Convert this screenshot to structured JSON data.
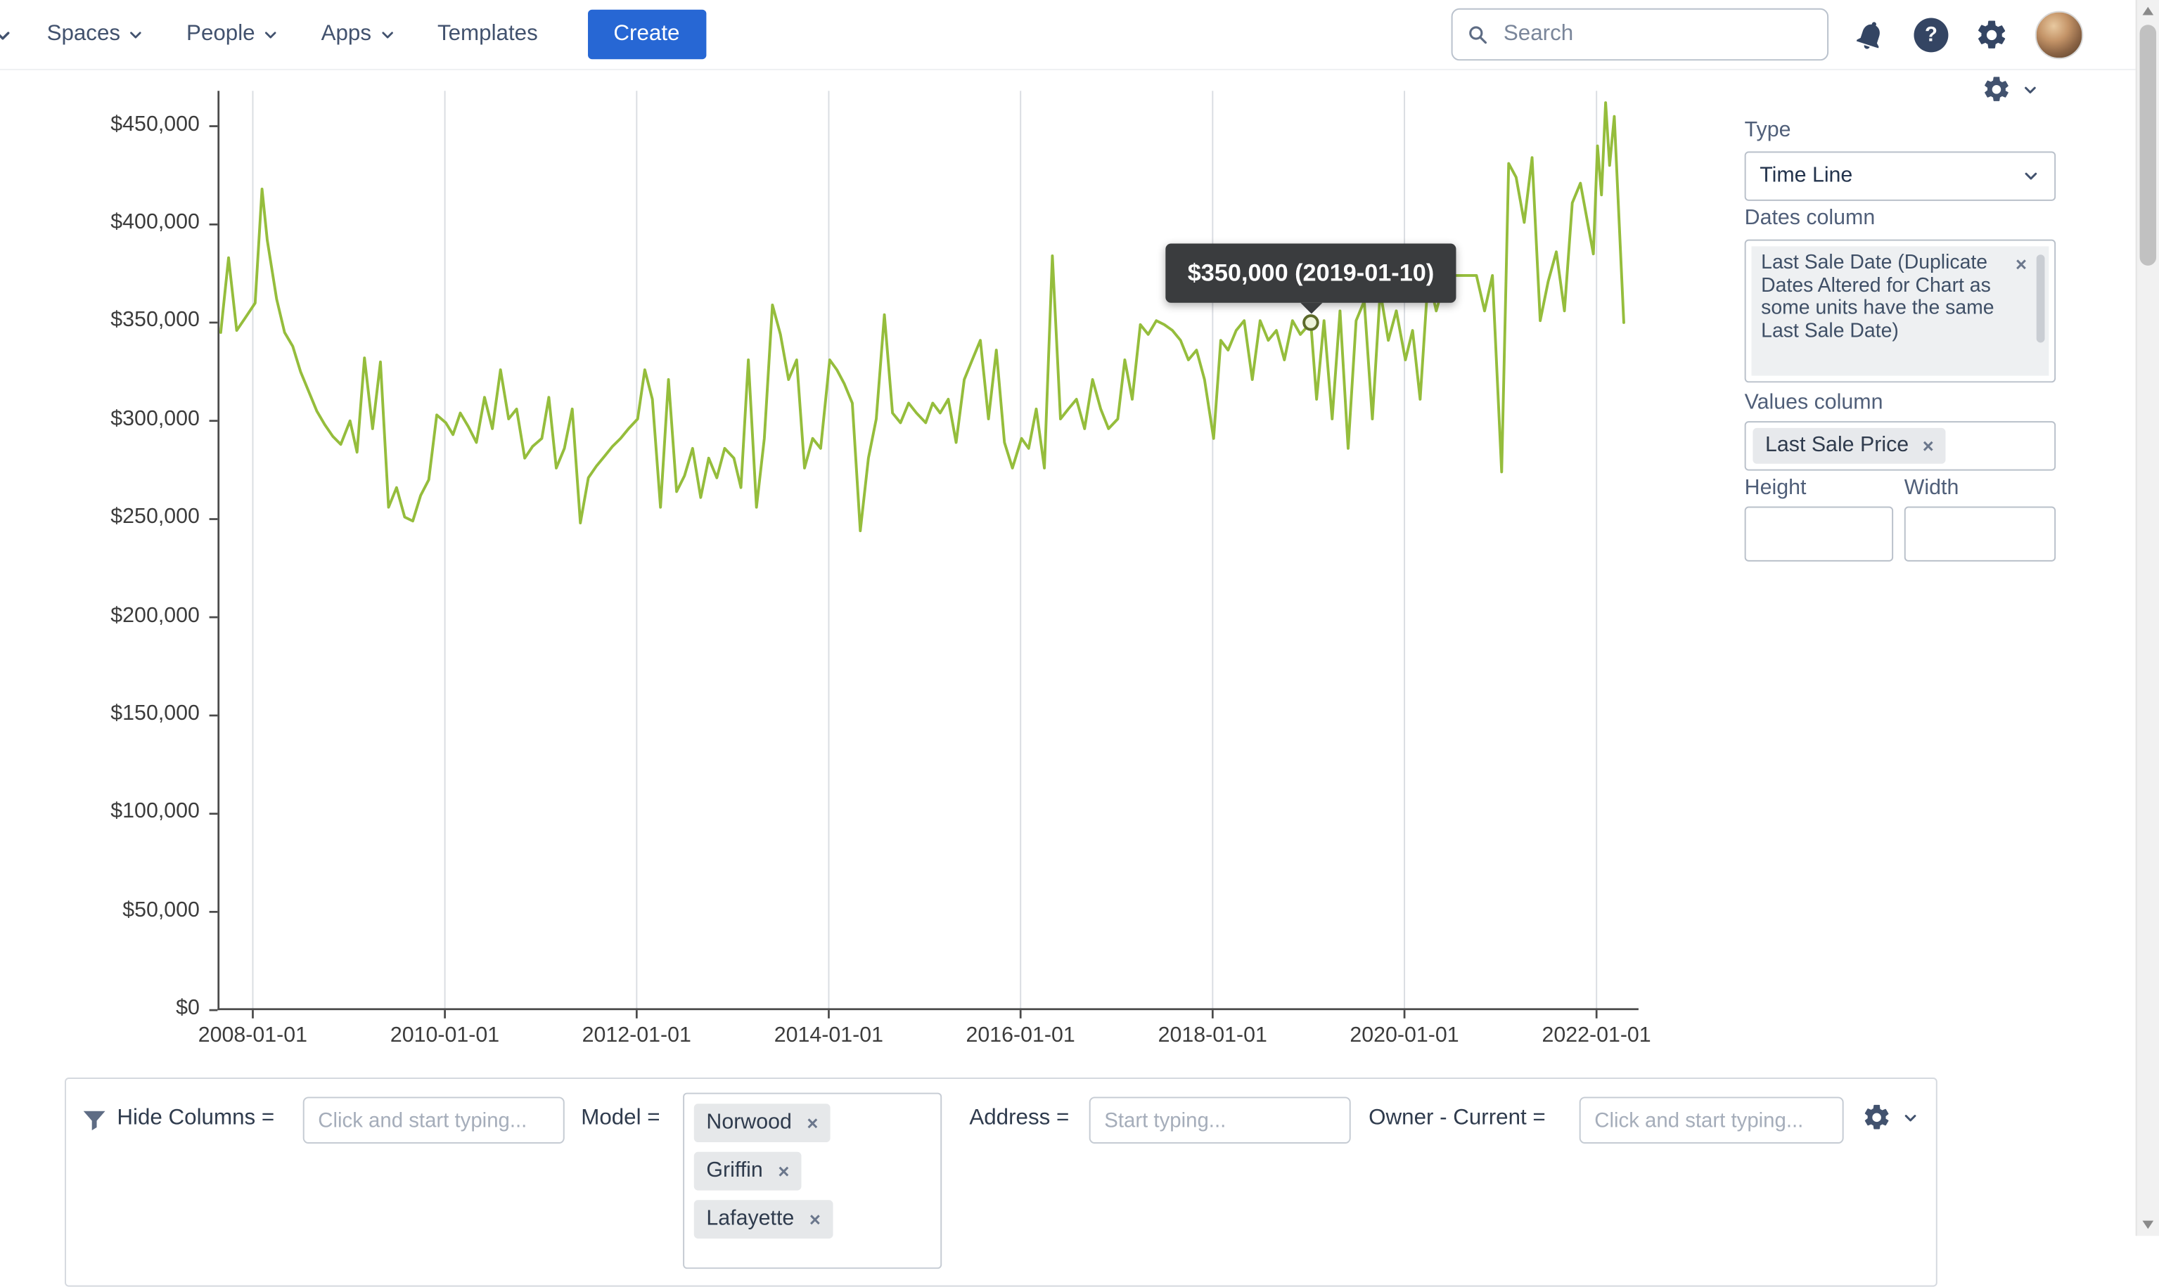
{
  "header": {
    "nav": [
      {
        "label": "Spaces"
      },
      {
        "label": "People"
      },
      {
        "label": "Apps"
      },
      {
        "label": "Templates"
      }
    ],
    "create_label": "Create",
    "search_placeholder": "Search",
    "help_glyph": "?"
  },
  "icons": {
    "remove_glyph": "×"
  },
  "chart_data": {
    "type": "line",
    "title": "",
    "xlabel": "",
    "ylabel": "",
    "legend": false,
    "grid": "vertical-only",
    "line_color": "#95bd3c",
    "x_domain": [
      "2007-08-20",
      "2022-06-10"
    ],
    "ylim": [
      0,
      468000
    ],
    "x_ticks": [
      "2008-01-01",
      "2010-01-01",
      "2012-01-01",
      "2014-01-01",
      "2016-01-01",
      "2018-01-01",
      "2020-01-01",
      "2022-01-01"
    ],
    "y_ticks": [
      {
        "value": 0,
        "label": "$0"
      },
      {
        "value": 50000,
        "label": "$50,000"
      },
      {
        "value": 100000,
        "label": "$100,000"
      },
      {
        "value": 150000,
        "label": "$150,000"
      },
      {
        "value": 200000,
        "label": "$200,000"
      },
      {
        "value": 250000,
        "label": "$250,000"
      },
      {
        "value": 300000,
        "label": "$300,000"
      },
      {
        "value": 350000,
        "label": "$350,000"
      },
      {
        "value": 400000,
        "label": "$400,000"
      },
      {
        "value": 450000,
        "label": "$450,000"
      }
    ],
    "highlight": {
      "date": "2019-01-10",
      "value": 350000,
      "label": "$350,000 (2019-01-10)"
    },
    "series": [
      {
        "name": "Last Sale Price",
        "points": [
          [
            "2007-09-01",
            345000
          ],
          [
            "2007-10-01",
            383000
          ],
          [
            "2007-11-01",
            346000
          ],
          [
            "2007-12-01",
            352000
          ],
          [
            "2008-01-10",
            360000
          ],
          [
            "2008-02-05",
            418000
          ],
          [
            "2008-02-25",
            392000
          ],
          [
            "2008-04-01",
            362000
          ],
          [
            "2008-05-01",
            345000
          ],
          [
            "2008-06-01",
            338000
          ],
          [
            "2008-07-01",
            325000
          ],
          [
            "2008-08-01",
            315000
          ],
          [
            "2008-09-01",
            305000
          ],
          [
            "2008-10-01",
            298000
          ],
          [
            "2008-11-01",
            292000
          ],
          [
            "2008-12-01",
            288000
          ],
          [
            "2009-01-05",
            300000
          ],
          [
            "2009-02-01",
            284000
          ],
          [
            "2009-03-01",
            332000
          ],
          [
            "2009-04-01",
            296000
          ],
          [
            "2009-05-01",
            330000
          ],
          [
            "2009-06-01",
            256000
          ],
          [
            "2009-07-01",
            266000
          ],
          [
            "2009-08-01",
            251000
          ],
          [
            "2009-09-01",
            249000
          ],
          [
            "2009-10-01",
            262000
          ],
          [
            "2009-11-01",
            270000
          ],
          [
            "2009-12-01",
            303000
          ],
          [
            "2010-01-05",
            299000
          ],
          [
            "2010-02-01",
            293000
          ],
          [
            "2010-03-01",
            304000
          ],
          [
            "2010-04-01",
            297000
          ],
          [
            "2010-05-01",
            289000
          ],
          [
            "2010-06-01",
            312000
          ],
          [
            "2010-07-01",
            296000
          ],
          [
            "2010-08-01",
            326000
          ],
          [
            "2010-09-01",
            301000
          ],
          [
            "2010-10-01",
            306000
          ],
          [
            "2010-11-01",
            281000
          ],
          [
            "2010-12-01",
            287000
          ],
          [
            "2011-01-05",
            291000
          ],
          [
            "2011-02-01",
            312000
          ],
          [
            "2011-03-01",
            276000
          ],
          [
            "2011-04-01",
            286000
          ],
          [
            "2011-05-01",
            306000
          ],
          [
            "2011-06-01",
            248000
          ],
          [
            "2011-07-01",
            271000
          ],
          [
            "2011-08-01",
            277000
          ],
          [
            "2011-09-01",
            282000
          ],
          [
            "2011-10-01",
            287000
          ],
          [
            "2011-11-01",
            291000
          ],
          [
            "2011-12-01",
            296000
          ],
          [
            "2012-01-05",
            301000
          ],
          [
            "2012-02-01",
            326000
          ],
          [
            "2012-03-01",
            311000
          ],
          [
            "2012-04-01",
            256000
          ],
          [
            "2012-05-01",
            321000
          ],
          [
            "2012-06-01",
            264000
          ],
          [
            "2012-07-01",
            272000
          ],
          [
            "2012-08-01",
            286000
          ],
          [
            "2012-09-01",
            261000
          ],
          [
            "2012-10-01",
            281000
          ],
          [
            "2012-11-01",
            271000
          ],
          [
            "2012-12-01",
            286000
          ],
          [
            "2013-01-05",
            281000
          ],
          [
            "2013-02-01",
            266000
          ],
          [
            "2013-03-01",
            331000
          ],
          [
            "2013-04-01",
            256000
          ],
          [
            "2013-05-01",
            291000
          ],
          [
            "2013-06-01",
            359000
          ],
          [
            "2013-07-01",
            344000
          ],
          [
            "2013-08-01",
            321000
          ],
          [
            "2013-09-01",
            331000
          ],
          [
            "2013-10-01",
            276000
          ],
          [
            "2013-11-01",
            291000
          ],
          [
            "2013-12-01",
            286000
          ],
          [
            "2014-01-05",
            331000
          ],
          [
            "2014-02-01",
            326000
          ],
          [
            "2014-03-01",
            319000
          ],
          [
            "2014-04-01",
            309000
          ],
          [
            "2014-05-01",
            244000
          ],
          [
            "2014-06-01",
            281000
          ],
          [
            "2014-07-01",
            301000
          ],
          [
            "2014-08-01",
            354000
          ],
          [
            "2014-09-01",
            304000
          ],
          [
            "2014-10-01",
            299000
          ],
          [
            "2014-11-01",
            309000
          ],
          [
            "2014-12-01",
            304000
          ],
          [
            "2015-01-05",
            299000
          ],
          [
            "2015-02-01",
            309000
          ],
          [
            "2015-03-01",
            304000
          ],
          [
            "2015-04-01",
            311000
          ],
          [
            "2015-05-01",
            289000
          ],
          [
            "2015-06-01",
            321000
          ],
          [
            "2015-07-01",
            331000
          ],
          [
            "2015-08-01",
            341000
          ],
          [
            "2015-09-01",
            301000
          ],
          [
            "2015-10-01",
            336000
          ],
          [
            "2015-11-01",
            289000
          ],
          [
            "2015-12-01",
            276000
          ],
          [
            "2016-01-05",
            291000
          ],
          [
            "2016-02-01",
            286000
          ],
          [
            "2016-03-01",
            306000
          ],
          [
            "2016-04-01",
            276000
          ],
          [
            "2016-05-01",
            384000
          ],
          [
            "2016-06-01",
            301000
          ],
          [
            "2016-07-01",
            306000
          ],
          [
            "2016-08-01",
            311000
          ],
          [
            "2016-09-01",
            296000
          ],
          [
            "2016-10-01",
            321000
          ],
          [
            "2016-11-01",
            306000
          ],
          [
            "2016-12-01",
            296000
          ],
          [
            "2017-01-05",
            301000
          ],
          [
            "2017-02-01",
            331000
          ],
          [
            "2017-03-01",
            311000
          ],
          [
            "2017-04-01",
            349000
          ],
          [
            "2017-05-01",
            344000
          ],
          [
            "2017-06-01",
            351000
          ],
          [
            "2017-07-01",
            349000
          ],
          [
            "2017-08-01",
            346000
          ],
          [
            "2017-09-01",
            341000
          ],
          [
            "2017-10-01",
            331000
          ],
          [
            "2017-11-01",
            336000
          ],
          [
            "2017-12-01",
            321000
          ],
          [
            "2018-01-05",
            291000
          ],
          [
            "2018-02-01",
            341000
          ],
          [
            "2018-03-01",
            336000
          ],
          [
            "2018-04-01",
            346000
          ],
          [
            "2018-05-01",
            351000
          ],
          [
            "2018-06-01",
            321000
          ],
          [
            "2018-07-01",
            351000
          ],
          [
            "2018-08-01",
            341000
          ],
          [
            "2018-09-01",
            346000
          ],
          [
            "2018-10-01",
            331000
          ],
          [
            "2018-11-01",
            351000
          ],
          [
            "2018-12-01",
            344000
          ],
          [
            "2019-01-10",
            350000
          ],
          [
            "2019-02-01",
            311000
          ],
          [
            "2019-03-01",
            351000
          ],
          [
            "2019-04-01",
            301000
          ],
          [
            "2019-05-01",
            356000
          ],
          [
            "2019-06-01",
            286000
          ],
          [
            "2019-07-01",
            351000
          ],
          [
            "2019-08-01",
            361000
          ],
          [
            "2019-09-01",
            301000
          ],
          [
            "2019-10-01",
            366000
          ],
          [
            "2019-11-01",
            341000
          ],
          [
            "2019-12-01",
            356000
          ],
          [
            "2020-01-05",
            331000
          ],
          [
            "2020-02-01",
            346000
          ],
          [
            "2020-03-01",
            311000
          ],
          [
            "2020-04-01",
            374000
          ],
          [
            "2020-05-01",
            356000
          ],
          [
            "2020-06-01",
            371000
          ],
          [
            "2020-07-01",
            374000
          ],
          [
            "2020-08-01",
            374000
          ],
          [
            "2020-09-01",
            374000
          ],
          [
            "2020-10-01",
            374000
          ],
          [
            "2020-11-01",
            356000
          ],
          [
            "2020-12-01",
            374000
          ],
          [
            "2021-01-05",
            274000
          ],
          [
            "2021-02-01",
            431000
          ],
          [
            "2021-03-01",
            424000
          ],
          [
            "2021-04-01",
            401000
          ],
          [
            "2021-05-01",
            434000
          ],
          [
            "2021-06-01",
            351000
          ],
          [
            "2021-07-01",
            371000
          ],
          [
            "2021-08-01",
            386000
          ],
          [
            "2021-09-01",
            356000
          ],
          [
            "2021-10-01",
            411000
          ],
          [
            "2021-11-01",
            421000
          ],
          [
            "2021-12-20",
            385000
          ],
          [
            "2022-01-05",
            440000
          ],
          [
            "2022-01-20",
            415000
          ],
          [
            "2022-02-05",
            462000
          ],
          [
            "2022-02-20",
            430000
          ],
          [
            "2022-03-10",
            455000
          ],
          [
            "2022-04-15",
            350000
          ]
        ]
      }
    ]
  },
  "settings_panel": {
    "type_label": "Type",
    "type_value": "Time Line",
    "dates_column_label": "Dates column",
    "dates_column_value": "Last Sale Date (Duplicate Dates Altered for Chart as some units have the same Last Sale Date)",
    "values_column_label": "Values column",
    "values_column_value": "Last Sale Price",
    "height_label": "Height",
    "width_label": "Width"
  },
  "filter_bar": {
    "hide_columns_label": "Hide Columns =",
    "hide_columns_placeholder": "Click and start typing...",
    "model_label": "Model =",
    "model_tokens": [
      "Norwood",
      "Griffin",
      "Lafayette"
    ],
    "address_label": "Address =",
    "address_placeholder": "Start typing...",
    "owner_label": "Owner - Current =",
    "owner_placeholder": "Click and start typing..."
  }
}
